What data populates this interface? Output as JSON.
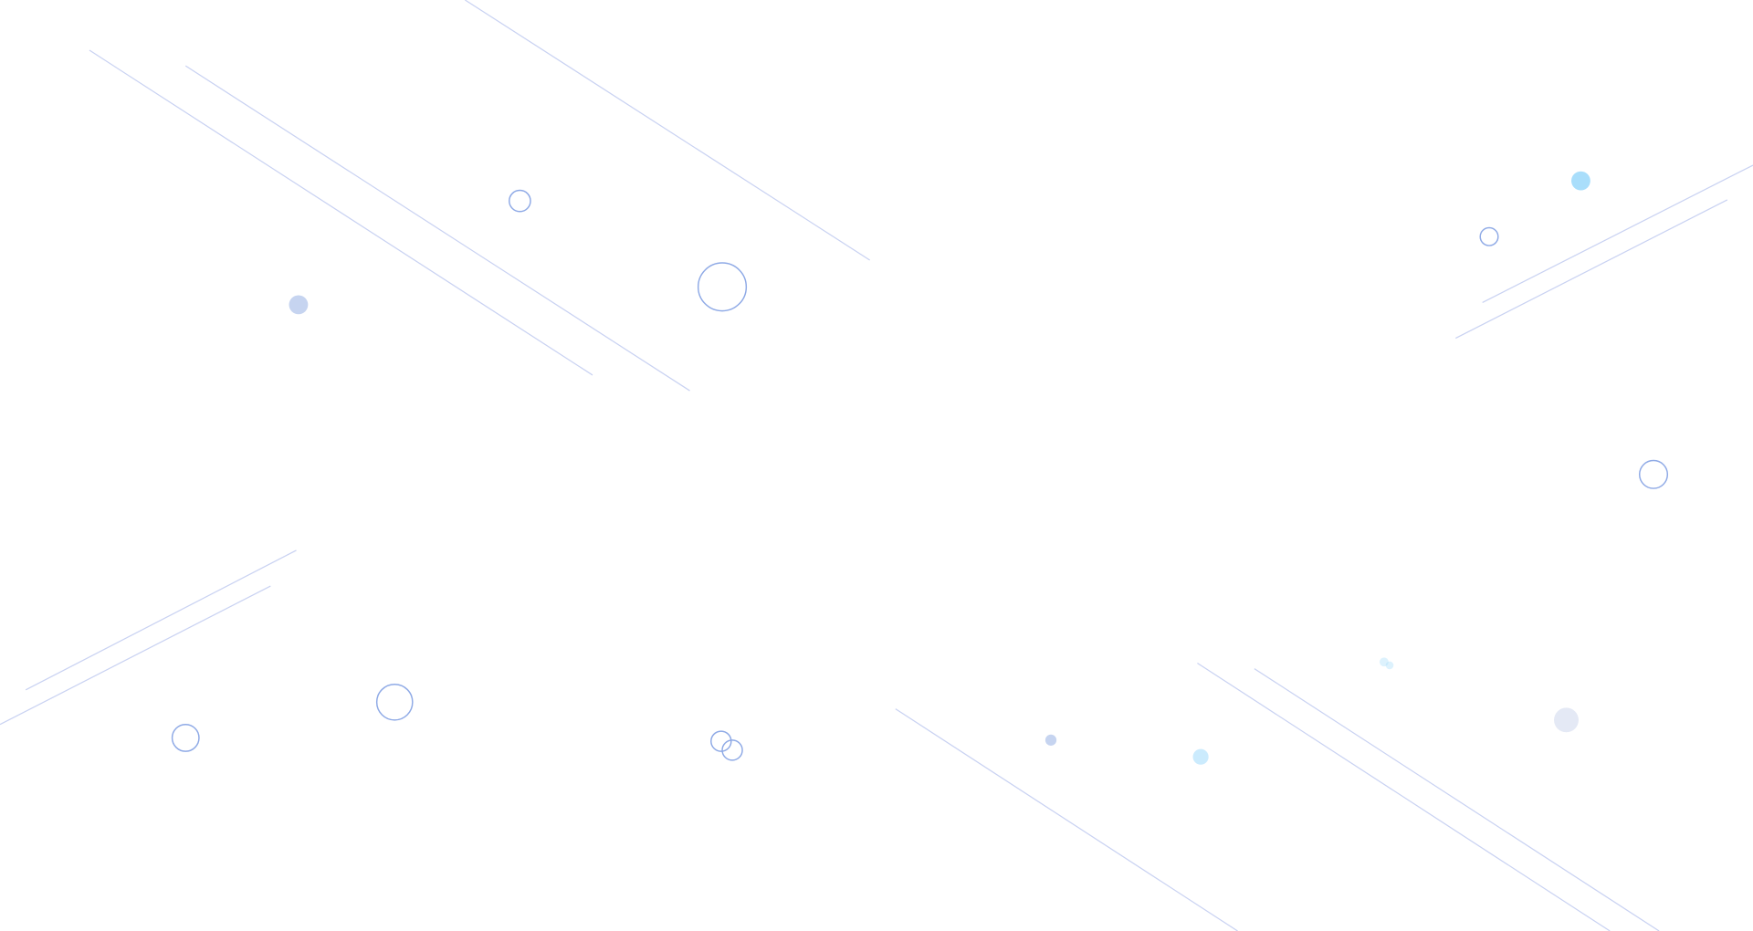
{
  "background": {
    "colors": {
      "page": "#ffffff",
      "line": "#c9d2f2",
      "ring": "#8faae6",
      "dot_blue": "#c6d4f0",
      "dot_cyan": "#a9defb",
      "dot_grey": "#e4e9f5"
    }
  }
}
